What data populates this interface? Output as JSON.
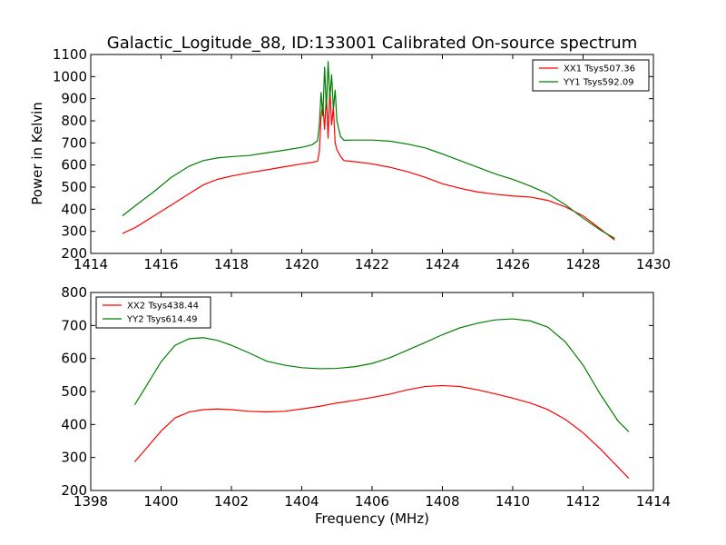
{
  "chart_data": [
    {
      "type": "line",
      "title": "Galactic_Logitude_88, ID:133001 Calibrated On-source spectrum",
      "xlabel": "",
      "ylabel": "Power in Kelvin",
      "xlim": [
        1414,
        1430
      ],
      "ylim": [
        200,
        1100
      ],
      "xticks": [
        1414,
        1416,
        1418,
        1420,
        1422,
        1424,
        1426,
        1428,
        1430
      ],
      "yticks": [
        200,
        300,
        400,
        500,
        600,
        700,
        800,
        900,
        1000,
        1100
      ],
      "legend_position": "top-right",
      "grid": false,
      "series": [
        {
          "name": "XX1 Tsys507.36",
          "color": "#ff0000",
          "points": [
            [
              1414.9,
              290
            ],
            [
              1415.3,
              320
            ],
            [
              1415.8,
              370
            ],
            [
              1416.3,
              420
            ],
            [
              1416.8,
              470
            ],
            [
              1417.2,
              510
            ],
            [
              1417.6,
              535
            ],
            [
              1418.0,
              550
            ],
            [
              1418.5,
              565
            ],
            [
              1419.0,
              578
            ],
            [
              1419.5,
              592
            ],
            [
              1420.0,
              605
            ],
            [
              1420.3,
              612
            ],
            [
              1420.45,
              618
            ],
            [
              1420.5,
              660
            ],
            [
              1420.55,
              820
            ],
            [
              1420.6,
              880
            ],
            [
              1420.65,
              760
            ],
            [
              1420.7,
              920
            ],
            [
              1420.75,
              720
            ],
            [
              1420.8,
              950
            ],
            [
              1420.85,
              780
            ],
            [
              1420.9,
              860
            ],
            [
              1420.95,
              700
            ],
            [
              1421.0,
              670
            ],
            [
              1421.1,
              640
            ],
            [
              1421.2,
              620
            ],
            [
              1421.5,
              615
            ],
            [
              1422.0,
              605
            ],
            [
              1422.5,
              590
            ],
            [
              1423.0,
              570
            ],
            [
              1423.5,
              545
            ],
            [
              1424.0,
              515
            ],
            [
              1424.5,
              495
            ],
            [
              1425.0,
              478
            ],
            [
              1425.5,
              468
            ],
            [
              1426.0,
              460
            ],
            [
              1426.5,
              455
            ],
            [
              1427.0,
              440
            ],
            [
              1427.5,
              410
            ],
            [
              1428.0,
              370
            ],
            [
              1428.5,
              310
            ],
            [
              1428.9,
              260
            ]
          ]
        },
        {
          "name": "YY1 Tsys592.09",
          "color": "#008000",
          "points": [
            [
              1414.9,
              370
            ],
            [
              1415.3,
              420
            ],
            [
              1415.8,
              480
            ],
            [
              1416.3,
              545
            ],
            [
              1416.8,
              595
            ],
            [
              1417.2,
              620
            ],
            [
              1417.6,
              632
            ],
            [
              1418.0,
              638
            ],
            [
              1418.5,
              643
            ],
            [
              1419.0,
              655
            ],
            [
              1419.5,
              667
            ],
            [
              1420.0,
              680
            ],
            [
              1420.3,
              692
            ],
            [
              1420.45,
              710
            ],
            [
              1420.5,
              780
            ],
            [
              1420.55,
              930
            ],
            [
              1420.6,
              820
            ],
            [
              1420.65,
              1045
            ],
            [
              1420.7,
              850
            ],
            [
              1420.75,
              1070
            ],
            [
              1420.8,
              900
            ],
            [
              1420.85,
              1010
            ],
            [
              1420.9,
              850
            ],
            [
              1420.95,
              940
            ],
            [
              1421.0,
              800
            ],
            [
              1421.1,
              730
            ],
            [
              1421.2,
              712
            ],
            [
              1421.5,
              713
            ],
            [
              1422.0,
              713
            ],
            [
              1422.5,
              708
            ],
            [
              1423.0,
              695
            ],
            [
              1423.5,
              678
            ],
            [
              1424.0,
              650
            ],
            [
              1424.5,
              620
            ],
            [
              1425.0,
              590
            ],
            [
              1425.5,
              560
            ],
            [
              1426.0,
              535
            ],
            [
              1426.5,
              505
            ],
            [
              1427.0,
              470
            ],
            [
              1427.5,
              420
            ],
            [
              1428.0,
              360
            ],
            [
              1428.5,
              305
            ],
            [
              1428.9,
              268
            ]
          ]
        }
      ]
    },
    {
      "type": "line",
      "title": "",
      "xlabel": "Frequency (MHz)",
      "ylabel": "",
      "xlim": [
        1398,
        1414
      ],
      "ylim": [
        200,
        800
      ],
      "xticks": [
        1398,
        1400,
        1402,
        1404,
        1406,
        1408,
        1410,
        1412,
        1414
      ],
      "yticks": [
        200,
        300,
        400,
        500,
        600,
        700,
        800
      ],
      "legend_position": "top-left",
      "grid": false,
      "series": [
        {
          "name": "XX2 Tsys438.44",
          "color": "#ff0000",
          "points": [
            [
              1399.25,
              287
            ],
            [
              1399.6,
              330
            ],
            [
              1400.0,
              380
            ],
            [
              1400.4,
              420
            ],
            [
              1400.8,
              438
            ],
            [
              1401.2,
              445
            ],
            [
              1401.6,
              447
            ],
            [
              1402.0,
              445
            ],
            [
              1402.5,
              440
            ],
            [
              1403.0,
              438
            ],
            [
              1403.5,
              440
            ],
            [
              1404.0,
              447
            ],
            [
              1404.5,
              455
            ],
            [
              1405.0,
              465
            ],
            [
              1405.5,
              473
            ],
            [
              1406.0,
              482
            ],
            [
              1406.5,
              492
            ],
            [
              1407.0,
              505
            ],
            [
              1407.5,
              515
            ],
            [
              1408.0,
              518
            ],
            [
              1408.5,
              515
            ],
            [
              1409.0,
              505
            ],
            [
              1409.5,
              493
            ],
            [
              1410.0,
              480
            ],
            [
              1410.5,
              465
            ],
            [
              1411.0,
              445
            ],
            [
              1411.5,
              415
            ],
            [
              1412.0,
              375
            ],
            [
              1412.5,
              325
            ],
            [
              1413.0,
              270
            ],
            [
              1413.3,
              237
            ]
          ]
        },
        {
          "name": "YY2 Tsys614.49",
          "color": "#008000",
          "points": [
            [
              1399.25,
              460
            ],
            [
              1399.6,
              520
            ],
            [
              1400.0,
              590
            ],
            [
              1400.4,
              640
            ],
            [
              1400.8,
              660
            ],
            [
              1401.2,
              663
            ],
            [
              1401.6,
              655
            ],
            [
              1402.0,
              640
            ],
            [
              1402.5,
              617
            ],
            [
              1403.0,
              592
            ],
            [
              1403.5,
              580
            ],
            [
              1404.0,
              572
            ],
            [
              1404.5,
              569
            ],
            [
              1405.0,
              570
            ],
            [
              1405.5,
              575
            ],
            [
              1406.0,
              585
            ],
            [
              1406.5,
              602
            ],
            [
              1407.0,
              625
            ],
            [
              1407.5,
              648
            ],
            [
              1408.0,
              672
            ],
            [
              1408.5,
              693
            ],
            [
              1409.0,
              707
            ],
            [
              1409.5,
              717
            ],
            [
              1410.0,
              720
            ],
            [
              1410.5,
              714
            ],
            [
              1411.0,
              695
            ],
            [
              1411.5,
              650
            ],
            [
              1412.0,
              580
            ],
            [
              1412.5,
              490
            ],
            [
              1413.0,
              410
            ],
            [
              1413.3,
              378
            ]
          ]
        }
      ]
    }
  ]
}
